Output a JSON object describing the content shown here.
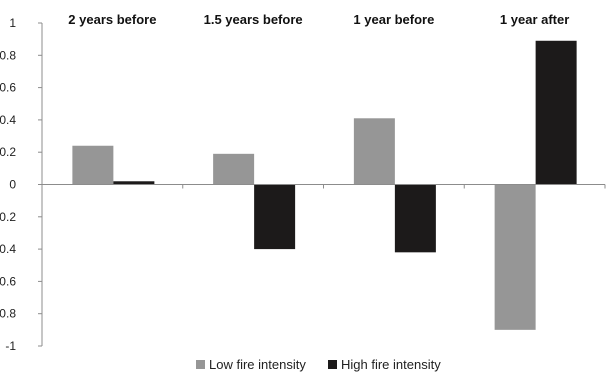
{
  "chart_data": {
    "type": "bar",
    "categories": [
      "2 years before",
      "1.5 years before",
      "1 year before",
      "1 year after"
    ],
    "series": [
      {
        "name": "Low fire intensity",
        "values": [
          0.24,
          0.19,
          0.41,
          -0.9
        ],
        "color": "#969696"
      },
      {
        "name": "High fire intensity",
        "values": [
          0.02,
          -0.4,
          -0.42,
          0.89
        ],
        "color": "#1c1a1a"
      }
    ],
    "yticks": [
      "1",
      "0.8",
      "0.6",
      "0.4",
      "0.2",
      "0",
      "-0.2",
      "-0.4",
      "-0.6",
      "-0.8",
      "-1"
    ],
    "ylim": [
      -1,
      1
    ],
    "legend_position": "bottom-center",
    "category_label_position": "top",
    "grid": false
  }
}
